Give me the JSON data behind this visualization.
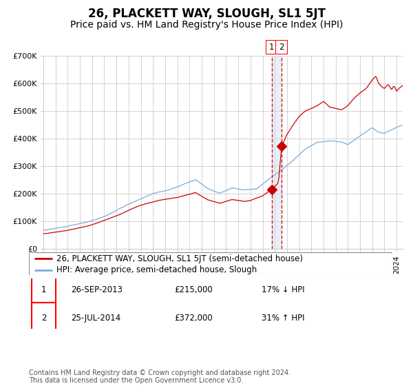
{
  "title": "26, PLACKETT WAY, SLOUGH, SL1 5JT",
  "subtitle": "Price paid vs. HM Land Registry's House Price Index (HPI)",
  "legend_line1": "26, PLACKETT WAY, SLOUGH, SL1 5JT (semi-detached house)",
  "legend_line2": "HPI: Average price, semi-detached house, Slough",
  "annotation1_date": "26-SEP-2013",
  "annotation1_price": "£215,000",
  "annotation1_hpi": "17% ↓ HPI",
  "annotation2_date": "25-JUL-2014",
  "annotation2_price": "£372,000",
  "annotation2_hpi": "31% ↑ HPI",
  "footer": "Contains HM Land Registry data © Crown copyright and database right 2024.\nThis data is licensed under the Open Government Licence v3.0.",
  "hpi_color": "#7aaadd",
  "price_color": "#cc0000",
  "marker_color": "#cc0000",
  "dashed_line_color": "#cc0000",
  "shaded_color": "#c8d8ee",
  "background_color": "#ffffff",
  "grid_color": "#cccccc",
  "ylim": [
    0,
    700000
  ],
  "yticks": [
    0,
    100000,
    200000,
    300000,
    400000,
    500000,
    600000,
    700000
  ],
  "ytick_labels": [
    "£0",
    "£100K",
    "£200K",
    "£300K",
    "£400K",
    "£500K",
    "£600K",
    "£700K"
  ],
  "sale1_date_num": 2013.74,
  "sale1_value": 215000,
  "sale2_date_num": 2014.56,
  "sale2_value": 372000,
  "xmin": 1995.0,
  "xmax": 2024.5,
  "title_fontsize": 12,
  "subtitle_fontsize": 10,
  "axis_fontsize": 8,
  "legend_fontsize": 8.5,
  "annotation_fontsize": 8.5,
  "footer_fontsize": 7
}
